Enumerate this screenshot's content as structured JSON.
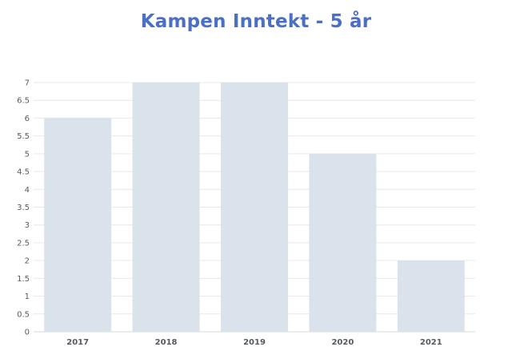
{
  "chart_data": {
    "type": "bar",
    "title": "Kampen Inntekt - 5 år",
    "xlabel": "",
    "ylabel": "",
    "categories": [
      "2017",
      "2018",
      "2019",
      "2020",
      "2021"
    ],
    "values": [
      6,
      7,
      7,
      5,
      2
    ],
    "ylim": [
      0,
      7
    ],
    "yticks": [
      "0",
      "0.5",
      "1",
      "1.5",
      "2",
      "2.5",
      "3",
      "3.5",
      "4",
      "4.5",
      "5",
      "5.5",
      "6",
      "6.5",
      "7"
    ],
    "grid": true,
    "legend": "none",
    "colors": {
      "bar": "#dae3eb",
      "title": "#4a6fc4",
      "grid": "#e6e9ec",
      "axis": "#d5d9dd",
      "tick_text": "#555a61"
    }
  }
}
